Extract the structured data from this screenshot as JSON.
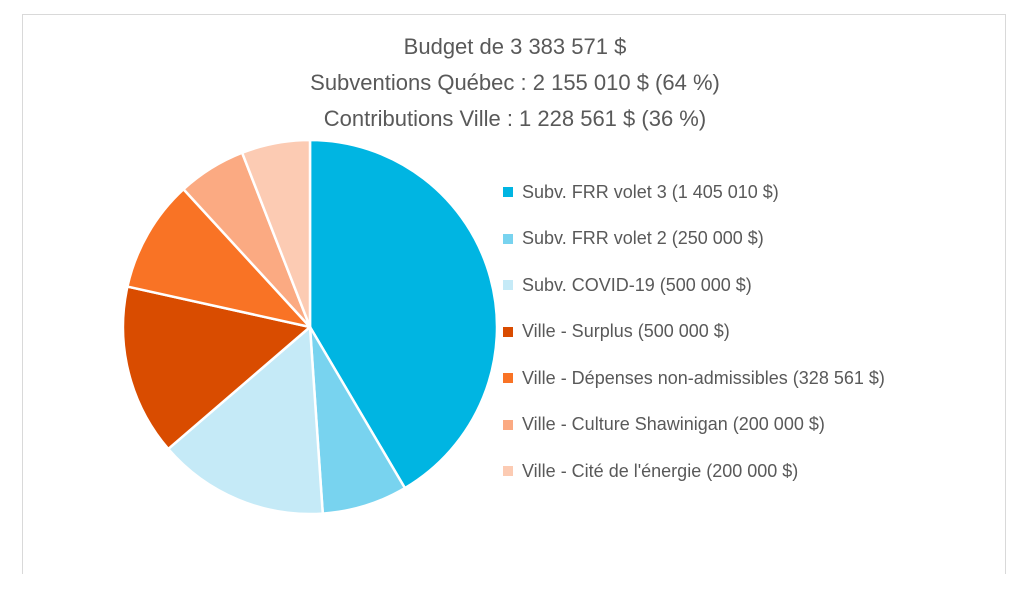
{
  "chart_data": {
    "type": "pie",
    "title_lines": [
      "Budget de 3 383 571 $",
      "Subventions Québec : 2 155 010 $ (64 %)",
      "Contributions Ville : 1 228 561 $ (36 %)"
    ],
    "series": [
      {
        "values": [
          1405010,
          250000,
          500000,
          500000,
          328561,
          200000,
          200000
        ]
      }
    ],
    "categories": [
      "Subv. FRR volet 3 (1 405 010 $)",
      "Subv. FRR volet 2 (250 000 $)",
      "Subv. COVID-19 (500 000 $)",
      "Ville - Surplus (500 000 $)",
      "Ville - Dépenses non-admissibles (328 561 $)",
      "Ville - Culture Shawinigan (200 000 $)",
      "Ville - Cité de l'énergie (200 000 $)"
    ],
    "colors": [
      "#00b5e2",
      "#78d3ef",
      "#c5eaf7",
      "#d94c00",
      "#f97325",
      "#fbaa82",
      "#fccbb3"
    ],
    "legend_position": "right",
    "start_angle_deg": 0,
    "direction": "clockwise"
  }
}
